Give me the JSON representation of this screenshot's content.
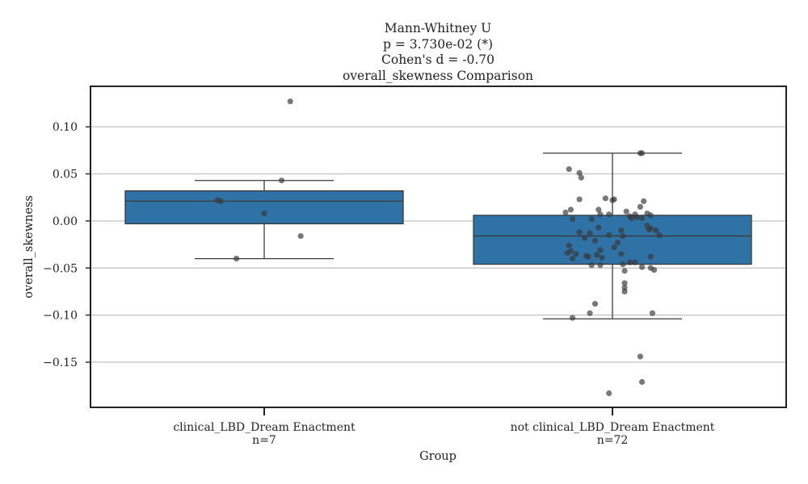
{
  "chart_data": {
    "type": "box",
    "title_lines": [
      "Mann-Whitney U",
      "p = 3.730e-02 (*)",
      "Cohen's d = -0.70",
      "overall_skewness Comparison"
    ],
    "xlabel": "Group",
    "ylabel": "overall_skewness",
    "ylim": [
      -0.198,
      0.143
    ],
    "yticks": [
      0.1,
      0.05,
      0.0,
      -0.05,
      -0.1,
      -0.15
    ],
    "ytick_labels": [
      "0.10",
      "0.05",
      "0.00",
      "−0.05",
      "−0.10",
      "−0.15"
    ],
    "grid": "horizontal",
    "box_color": "#2e72a6",
    "point_color": "#3a3a3a",
    "groups": [
      {
        "label": "clinical_LBD_Dream Enactment",
        "n_label": "n=7",
        "q1": -0.003,
        "median": 0.021,
        "q3": 0.032,
        "whisker_low": -0.04,
        "whisker_high": 0.043,
        "points": [
          {
            "jitter": 0.15,
            "y": 0.127
          },
          {
            "jitter": 0.1,
            "y": 0.043
          },
          {
            "jitter": -0.27,
            "y": 0.022
          },
          {
            "jitter": -0.25,
            "y": 0.021
          },
          {
            "jitter": 0.0,
            "y": 0.008
          },
          {
            "jitter": 0.21,
            "y": -0.016
          },
          {
            "jitter": -0.16,
            "y": -0.04
          }
        ]
      },
      {
        "label": "not clinical_LBD_Dream Enactment",
        "n_label": "n=72",
        "q1": -0.046,
        "median": -0.016,
        "q3": 0.006,
        "whisker_low": -0.104,
        "whisker_high": 0.072,
        "points": [
          {
            "jitter": 0.16,
            "y": 0.072
          },
          {
            "jitter": -0.25,
            "y": 0.055
          },
          {
            "jitter": -0.19,
            "y": 0.051
          },
          {
            "jitter": -0.18,
            "y": 0.046
          },
          {
            "jitter": -0.19,
            "y": 0.023
          },
          {
            "jitter": -0.04,
            "y": 0.024
          },
          {
            "jitter": 0.0,
            "y": 0.022
          },
          {
            "jitter": 0.01,
            "y": 0.023
          },
          {
            "jitter": 0.18,
            "y": 0.021
          },
          {
            "jitter": 0.16,
            "y": 0.015
          },
          {
            "jitter": -0.24,
            "y": 0.012
          },
          {
            "jitter": -0.08,
            "y": 0.012
          },
          {
            "jitter": -0.27,
            "y": 0.009
          },
          {
            "jitter": 0.08,
            "y": 0.01
          },
          {
            "jitter": -0.07,
            "y": 0.007
          },
          {
            "jitter": -0.02,
            "y": 0.007
          },
          {
            "jitter": 0.13,
            "y": 0.007
          },
          {
            "jitter": 0.2,
            "y": 0.008
          },
          {
            "jitter": 0.22,
            "y": 0.006
          },
          {
            "jitter": 0.1,
            "y": 0.005
          },
          {
            "jitter": 0.14,
            "y": 0.004
          },
          {
            "jitter": 0.11,
            "y": 0.003
          },
          {
            "jitter": -0.23,
            "y": 0.002
          },
          {
            "jitter": -0.12,
            "y": 0.002
          },
          {
            "jitter": 0.17,
            "y": 0.003
          },
          {
            "jitter": 0.2,
            "y": -0.005
          },
          {
            "jitter": 0.22,
            "y": -0.008
          },
          {
            "jitter": -0.08,
            "y": -0.007
          },
          {
            "jitter": 0.21,
            "y": -0.009
          },
          {
            "jitter": 0.25,
            "y": -0.01
          },
          {
            "jitter": -0.19,
            "y": -0.012
          },
          {
            "jitter": -0.13,
            "y": -0.013
          },
          {
            "jitter": 0.05,
            "y": -0.01
          },
          {
            "jitter": 0.27,
            "y": -0.015
          },
          {
            "jitter": -0.02,
            "y": -0.015
          },
          {
            "jitter": -0.16,
            "y": -0.018
          },
          {
            "jitter": 0.06,
            "y": -0.016
          },
          {
            "jitter": -0.1,
            "y": -0.021
          },
          {
            "jitter": 0.03,
            "y": -0.023
          },
          {
            "jitter": -0.25,
            "y": -0.026
          },
          {
            "jitter": 0.01,
            "y": -0.028
          },
          {
            "jitter": -0.07,
            "y": -0.031
          },
          {
            "jitter": -0.24,
            "y": -0.032
          },
          {
            "jitter": -0.26,
            "y": -0.034
          },
          {
            "jitter": -0.21,
            "y": -0.035
          },
          {
            "jitter": -0.15,
            "y": -0.037
          },
          {
            "jitter": -0.09,
            "y": -0.036
          },
          {
            "jitter": 0.05,
            "y": -0.035
          },
          {
            "jitter": 0.22,
            "y": -0.038
          },
          {
            "jitter": -0.23,
            "y": -0.04
          },
          {
            "jitter": -0.14,
            "y": -0.038
          },
          {
            "jitter": -0.06,
            "y": -0.039
          },
          {
            "jitter": 0.1,
            "y": -0.044
          },
          {
            "jitter": 0.13,
            "y": -0.044
          },
          {
            "jitter": -0.12,
            "y": -0.047
          },
          {
            "jitter": -0.07,
            "y": -0.047
          },
          {
            "jitter": 0.06,
            "y": -0.046
          },
          {
            "jitter": 0.17,
            "y": -0.049
          },
          {
            "jitter": 0.22,
            "y": -0.05
          },
          {
            "jitter": 0.24,
            "y": -0.052
          },
          {
            "jitter": 0.07,
            "y": -0.053
          },
          {
            "jitter": 0.07,
            "y": -0.066
          },
          {
            "jitter": 0.07,
            "y": -0.071
          },
          {
            "jitter": 0.07,
            "y": -0.075
          },
          {
            "jitter": -0.1,
            "y": -0.088
          },
          {
            "jitter": -0.13,
            "y": -0.098
          },
          {
            "jitter": 0.23,
            "y": -0.098
          },
          {
            "jitter": -0.23,
            "y": -0.103
          },
          {
            "jitter": 0.16,
            "y": -0.144
          },
          {
            "jitter": 0.17,
            "y": -0.171
          },
          {
            "jitter": -0.02,
            "y": -0.183
          },
          {
            "jitter": 0.17,
            "y": 0.072
          }
        ]
      }
    ]
  }
}
